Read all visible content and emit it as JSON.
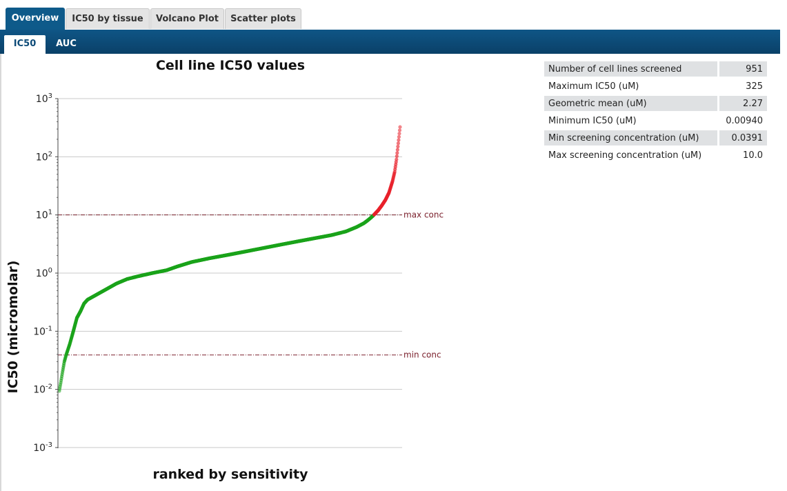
{
  "tabs": [
    "Overview",
    "IC50 by tissue",
    "Volcano Plot",
    "Scatter plots"
  ],
  "subtabs": [
    "IC50",
    "AUC"
  ],
  "stats": [
    {
      "label": "Number of cell lines screened",
      "value": "951"
    },
    {
      "label": "Maximum IC50 (uM)",
      "value": "325"
    },
    {
      "label": "Geometric mean (uM)",
      "value": "2.27"
    },
    {
      "label": "Minimum IC50 (uM)",
      "value": "0.00940"
    },
    {
      "label": "Min screening concentration (uM)",
      "value": "0.0391"
    },
    {
      "label": "Max screening concentration (uM)",
      "value": "10.0"
    }
  ],
  "chart_data": {
    "type": "scatter",
    "title": "Cell line IC50 values",
    "xlabel": "ranked by sensitivity",
    "ylabel": "IC50 (micromolar)",
    "yscale": "log",
    "ylim": [
      0.001,
      1000
    ],
    "yticks": [
      {
        "base": "10",
        "exp": "3"
      },
      {
        "base": "10",
        "exp": "2"
      },
      {
        "base": "10",
        "exp": "1"
      },
      {
        "base": "10",
        "exp": "0"
      },
      {
        "base": "10",
        "exp": "-1"
      },
      {
        "base": "10",
        "exp": "-2"
      },
      {
        "base": "10",
        "exp": "-3"
      }
    ],
    "grid": true,
    "n_points": 951,
    "reference_lines": [
      {
        "label": "max conc",
        "value": 10.0,
        "color": "#7a1f2b"
      },
      {
        "label": "min conc",
        "value": 0.0391,
        "color": "#7a1f2b"
      }
    ],
    "colors": {
      "below_max": "#1aa31a",
      "above_max": "#e8202a"
    },
    "curve_rank_ic50": [
      [
        1,
        0.0094
      ],
      [
        5,
        0.013
      ],
      [
        10,
        0.02
      ],
      [
        15,
        0.03
      ],
      [
        20,
        0.039
      ],
      [
        30,
        0.06
      ],
      [
        40,
        0.1
      ],
      [
        50,
        0.17
      ],
      [
        60,
        0.22
      ],
      [
        70,
        0.3
      ],
      [
        80,
        0.35
      ],
      [
        100,
        0.41
      ],
      [
        130,
        0.52
      ],
      [
        160,
        0.66
      ],
      [
        190,
        0.79
      ],
      [
        220,
        0.88
      ],
      [
        260,
        1.0
      ],
      [
        300,
        1.12
      ],
      [
        330,
        1.3
      ],
      [
        370,
        1.55
      ],
      [
        420,
        1.8
      ],
      [
        470,
        2.05
      ],
      [
        520,
        2.35
      ],
      [
        570,
        2.7
      ],
      [
        620,
        3.1
      ],
      [
        670,
        3.55
      ],
      [
        720,
        4.05
      ],
      [
        760,
        4.5
      ],
      [
        800,
        5.2
      ],
      [
        830,
        6.2
      ],
      [
        850,
        7.2
      ],
      [
        860,
        8.0
      ],
      [
        870,
        9.0
      ],
      [
        878,
        10.0
      ],
      [
        890,
        12.0
      ],
      [
        900,
        14.5
      ],
      [
        910,
        18.0
      ],
      [
        920,
        24.0
      ],
      [
        930,
        38.0
      ],
      [
        936,
        55.0
      ],
      [
        941,
        90.0
      ],
      [
        945,
        150.0
      ],
      [
        948,
        220.0
      ],
      [
        951,
        325.0
      ]
    ]
  }
}
